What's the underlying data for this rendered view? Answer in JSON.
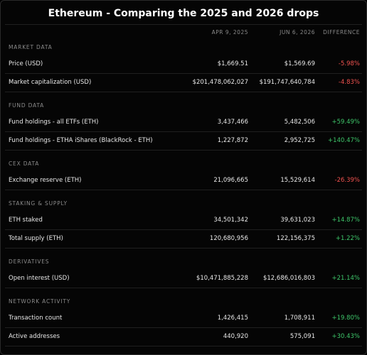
{
  "title": "Ethereum - Comparing the 2025 and 2026 drops",
  "header": {
    "columns": [
      "APR 9, 2025",
      "JUN 6, 2026",
      "DIFFERENCE"
    ]
  },
  "sections": [
    {
      "title": "MARKET DATA",
      "rows": [
        {
          "label": "Price (USD)",
          "values": [
            "$1,669.51",
            "$1,569.69",
            "-5.98%"
          ]
        },
        {
          "label": "Market capitalization (USD)",
          "values": [
            "$201,478,062,027",
            "$191,747,640,784",
            "-4.83%"
          ]
        }
      ]
    },
    {
      "title": "FUND DATA",
      "rows": [
        {
          "label": "Fund holdings - all ETFs (ETH)",
          "values": [
            "3,437,466",
            "5,482,506",
            "+59.49%"
          ]
        },
        {
          "label": "Fund holdings - ETHA iShares (BlackRock - ETH)",
          "values": [
            "1,227,872",
            "2,952,725",
            "+140.47%"
          ]
        }
      ]
    },
    {
      "title": "CEX DATA",
      "rows": [
        {
          "label": "Exchange reserve (ETH)",
          "values": [
            "21,096,665",
            "15,529,614",
            "-26.39%"
          ]
        }
      ]
    },
    {
      "title": "STAKING & SUPPLY",
      "rows": [
        {
          "label": "ETH staked",
          "values": [
            "34,501,342",
            "39,631,023",
            "+14.87%"
          ]
        },
        {
          "label": "Total supply (ETH)",
          "values": [
            "120,680,956",
            "122,156,375",
            "+1.22%"
          ]
        }
      ]
    },
    {
      "title": "DERIVATIVES",
      "rows": [
        {
          "label": "Open interest (USD)",
          "values": [
            "$10,471,885,228",
            "$12,686,016,803",
            "+21.14%"
          ]
        }
      ]
    },
    {
      "title": "NETWORK ACTIVITY",
      "rows": [
        {
          "label": "Transaction count",
          "values": [
            "1,426,415",
            "1,708,911",
            "+19.80%"
          ]
        },
        {
          "label": "Active addresses",
          "values": [
            "440,920",
            "575,091",
            "+30.43%"
          ]
        }
      ]
    }
  ]
}
